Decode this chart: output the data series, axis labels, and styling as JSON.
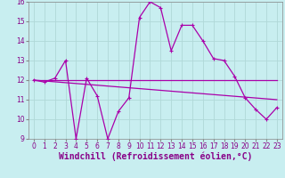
{
  "background_color": "#c8eef0",
  "grid_color": "#b0d8d8",
  "line_color": "#aa00aa",
  "xlim": [
    -0.5,
    23.5
  ],
  "ylim": [
    9,
    16
  ],
  "xlabel": "Windchill (Refroidissement éolien,°C)",
  "xtick_labels": [
    "0",
    "1",
    "2",
    "3",
    "4",
    "5",
    "6",
    "7",
    "8",
    "9",
    "10",
    "11",
    "12",
    "13",
    "14",
    "15",
    "16",
    "17",
    "18",
    "19",
    "20",
    "21",
    "22",
    "23"
  ],
  "yticks": [
    9,
    10,
    11,
    12,
    13,
    14,
    15,
    16
  ],
  "line1_x": [
    0,
    1,
    2,
    3,
    4,
    5,
    6,
    7,
    8,
    9,
    10,
    11,
    12,
    13,
    14,
    15,
    16,
    17,
    18,
    19,
    20,
    21,
    22,
    23
  ],
  "line1_y": [
    12.0,
    11.9,
    12.1,
    13.0,
    9.0,
    12.1,
    11.2,
    9.0,
    10.4,
    11.1,
    15.2,
    16.0,
    15.7,
    13.5,
    14.8,
    14.8,
    14.0,
    13.1,
    13.0,
    12.2,
    11.1,
    10.5,
    10.0,
    10.6
  ],
  "line2_x": [
    0,
    3,
    19,
    23
  ],
  "line2_y": [
    12.0,
    12.0,
    12.0,
    12.0
  ],
  "line3_x": [
    0,
    23
  ],
  "line3_y": [
    12.0,
    11.0
  ],
  "marker": "+",
  "markersize": 3,
  "linewidth": 0.9,
  "xlabel_fontsize": 7,
  "tick_fontsize": 5.5
}
